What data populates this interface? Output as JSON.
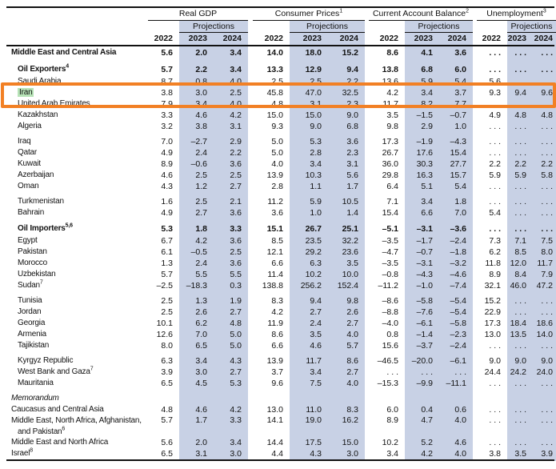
{
  "colors": {
    "projection_band": "#c8d1e5",
    "highlight_box": "#f28024",
    "search_highlight": "#b7e3b7",
    "rule_line": "#111111"
  },
  "table": {
    "col_groups": [
      {
        "label": "Real GDP",
        "sup": ""
      },
      {
        "label": "Consumer Prices",
        "sup": "1"
      },
      {
        "label": "Current Account Balance",
        "sup": "2"
      },
      {
        "label": "Unemployment",
        "sup": "3"
      }
    ],
    "projections_label": "Projections",
    "years": [
      "2022",
      "2023",
      "2024"
    ],
    "rows": [
      {
        "label": "Middle East and Central Asia",
        "sup": "",
        "bold": true,
        "indent": 0,
        "values": [
          "5.6",
          "2.0",
          "3.4",
          "14.0",
          "18.0",
          "15.2",
          "8.6",
          "4.1",
          "3.6",
          ". . .",
          ". . .",
          ". . ."
        ]
      },
      {
        "label": "Oil Exporters",
        "sup": "4",
        "bold": true,
        "indent": 1,
        "gap_before": true,
        "values": [
          "5.7",
          "2.2",
          "3.4",
          "13.3",
          "12.9",
          "9.4",
          "13.8",
          "6.8",
          "6.0",
          ". . .",
          ". . .",
          ". . ."
        ]
      },
      {
        "label": "Saudi Arabia",
        "indent": 1,
        "values": [
          "8.7",
          "0.8",
          "4.0",
          "2.5",
          "2.5",
          "2.2",
          "13.6",
          "5.9",
          "5.4",
          "5.6",
          "",
          ""
        ]
      },
      {
        "label": "Iran",
        "indent": 1,
        "highlight": true,
        "values": [
          "3.8",
          "3.0",
          "2.5",
          "45.8",
          "47.0",
          "32.5",
          "4.2",
          "3.4",
          "3.7",
          "9.3",
          "9.4",
          "9.6"
        ]
      },
      {
        "label": "United Arab Emirates",
        "indent": 1,
        "values": [
          "7.9",
          "3.4",
          "4.0",
          "4.8",
          "3.1",
          "2.3",
          "11.7",
          "8.2",
          "7.7",
          ". . .",
          ". . .",
          ". . ."
        ]
      },
      {
        "label": "Kazakhstan",
        "indent": 1,
        "values": [
          "3.3",
          "4.6",
          "4.2",
          "15.0",
          "15.0",
          "9.0",
          "3.5",
          "–1.5",
          "–0.7",
          "4.9",
          "4.8",
          "4.8"
        ]
      },
      {
        "label": "Algeria",
        "indent": 1,
        "values": [
          "3.2",
          "3.8",
          "3.1",
          "9.3",
          "9.0",
          "6.8",
          "9.8",
          "2.9",
          "1.0",
          ". . .",
          ". . .",
          ". . ."
        ]
      },
      {
        "label": "Iraq",
        "indent": 1,
        "gap_before": true,
        "values": [
          "7.0",
          "–2.7",
          "2.9",
          "5.0",
          "5.3",
          "3.6",
          "17.3",
          "–1.9",
          "–4.3",
          ". . .",
          ". . .",
          ". . ."
        ]
      },
      {
        "label": "Qatar",
        "indent": 1,
        "values": [
          "4.9",
          "2.4",
          "2.2",
          "5.0",
          "2.8",
          "2.3",
          "26.7",
          "17.6",
          "15.4",
          ". . .",
          ". . .",
          ". . ."
        ]
      },
      {
        "label": "Kuwait",
        "indent": 1,
        "values": [
          "8.9",
          "–0.6",
          "3.6",
          "4.0",
          "3.4",
          "3.1",
          "36.0",
          "30.3",
          "27.7",
          "2.2",
          "2.2",
          "2.2"
        ]
      },
      {
        "label": "Azerbaijan",
        "indent": 1,
        "values": [
          "4.6",
          "2.5",
          "2.5",
          "13.9",
          "10.3",
          "5.6",
          "29.8",
          "16.3",
          "15.7",
          "5.9",
          "5.9",
          "5.8"
        ]
      },
      {
        "label": "Oman",
        "indent": 1,
        "values": [
          "4.3",
          "1.2",
          "2.7",
          "2.8",
          "1.1",
          "1.7",
          "6.4",
          "5.1",
          "5.4",
          ". . .",
          ". . .",
          ". . ."
        ]
      },
      {
        "label": "Turkmenistan",
        "indent": 1,
        "gap_before": true,
        "values": [
          "1.6",
          "2.5",
          "2.1",
          "11.2",
          "5.9",
          "10.5",
          "7.1",
          "3.4",
          "1.8",
          ". . .",
          ". . .",
          ". . ."
        ]
      },
      {
        "label": "Bahrain",
        "indent": 1,
        "values": [
          "4.9",
          "2.7",
          "3.6",
          "3.6",
          "1.0",
          "1.4",
          "15.4",
          "6.6",
          "7.0",
          "5.4",
          ". . .",
          ". . ."
        ]
      },
      {
        "label": "Oil Importers",
        "sup": "5,6",
        "bold": true,
        "indent": 1,
        "gap_before": true,
        "values": [
          "5.3",
          "1.8",
          "3.3",
          "15.1",
          "26.7",
          "25.1",
          "–5.1",
          "–3.1",
          "–3.6",
          ". . .",
          ". . .",
          ". . ."
        ]
      },
      {
        "label": "Egypt",
        "indent": 1,
        "values": [
          "6.7",
          "4.2",
          "3.6",
          "8.5",
          "23.5",
          "32.2",
          "–3.5",
          "–1.7",
          "–2.4",
          "7.3",
          "7.1",
          "7.5"
        ]
      },
      {
        "label": "Pakistan",
        "indent": 1,
        "values": [
          "6.1",
          "–0.5",
          "2.5",
          "12.1",
          "29.2",
          "23.6",
          "–4.7",
          "–0.7",
          "–1.8",
          "6.2",
          "8.5",
          "8.0"
        ]
      },
      {
        "label": "Morocco",
        "indent": 1,
        "values": [
          "1.3",
          "2.4",
          "3.6",
          "6.6",
          "6.3",
          "3.5",
          "–3.5",
          "–3.1",
          "–3.2",
          "11.8",
          "12.0",
          "11.7"
        ]
      },
      {
        "label": "Uzbekistan",
        "indent": 1,
        "values": [
          "5.7",
          "5.5",
          "5.5",
          "11.4",
          "10.2",
          "10.0",
          "–0.8",
          "–4.3",
          "–4.6",
          "8.9",
          "8.4",
          "7.9"
        ]
      },
      {
        "label": "Sudan",
        "sup": "7",
        "indent": 1,
        "values": [
          "–2.5",
          "–18.3",
          "0.3",
          "138.8",
          "256.2",
          "152.4",
          "–11.2",
          "–1.0",
          "–7.4",
          "32.1",
          "46.0",
          "47.2"
        ]
      },
      {
        "label": "Tunisia",
        "indent": 1,
        "gap_before": true,
        "values": [
          "2.5",
          "1.3",
          "1.9",
          "8.3",
          "9.4",
          "9.8",
          "–8.6",
          "–5.8",
          "–5.4",
          "15.2",
          ". . .",
          ". . ."
        ]
      },
      {
        "label": "Jordan",
        "indent": 1,
        "values": [
          "2.5",
          "2.6",
          "2.7",
          "4.2",
          "2.7",
          "2.6",
          "–8.8",
          "–7.6",
          "–5.4",
          "22.9",
          ". . .",
          ". . ."
        ]
      },
      {
        "label": "Georgia",
        "indent": 1,
        "values": [
          "10.1",
          "6.2",
          "4.8",
          "11.9",
          "2.4",
          "2.7",
          "–4.0",
          "–6.1",
          "–5.8",
          "17.3",
          "18.4",
          "18.6"
        ]
      },
      {
        "label": "Armenia",
        "indent": 1,
        "values": [
          "12.6",
          "7.0",
          "5.0",
          "8.6",
          "3.5",
          "4.0",
          "0.8",
          "–1.4",
          "–2.3",
          "13.0",
          "13.5",
          "14.0"
        ]
      },
      {
        "label": "Tajikistan",
        "indent": 1,
        "values": [
          "8.0",
          "6.5",
          "5.0",
          "6.6",
          "4.6",
          "5.7",
          "15.6",
          "–3.7",
          "–2.4",
          ". . .",
          ". . .",
          ". . ."
        ]
      },
      {
        "label": "Kyrgyz Republic",
        "indent": 1,
        "gap_before": true,
        "values": [
          "6.3",
          "3.4",
          "4.3",
          "13.9",
          "11.7",
          "8.6",
          "–46.5",
          "–20.0",
          "–6.1",
          "9.0",
          "9.0",
          "9.0"
        ]
      },
      {
        "label": "West Bank and Gaza",
        "sup": "7",
        "indent": 1,
        "values": [
          "3.9",
          "3.0",
          "2.7",
          "3.7",
          "3.4",
          "2.7",
          ". . .",
          ". . .",
          ". . .",
          "24.4",
          "24.2",
          "24.0"
        ]
      },
      {
        "label": "Mauritania",
        "indent": 1,
        "values": [
          "6.5",
          "4.5",
          "5.3",
          "9.6",
          "7.5",
          "4.0",
          "–15.3",
          "–9.9",
          "–11.1",
          ". . .",
          ". . .",
          ". . ."
        ]
      },
      {
        "label": "Memorandum",
        "italic": true,
        "indent": 0,
        "gap_before": true,
        "values": [
          "",
          "",
          "",
          "",
          "",
          "",
          "",
          "",
          "",
          "",
          "",
          ""
        ]
      },
      {
        "label": "Caucasus and Central Asia",
        "indent": 0,
        "values": [
          "4.8",
          "4.6",
          "4.2",
          "13.0",
          "11.0",
          "8.3",
          "6.0",
          "0.4",
          "0.6",
          ". . .",
          ". . .",
          ". . ."
        ]
      },
      {
        "label": "Middle East, North Africa, Afghanistan,",
        "label2": "and Pakistan",
        "sup2": "6",
        "indent": 0,
        "values": [
          "5.7",
          "1.7",
          "3.3",
          "14.1",
          "19.0",
          "16.2",
          "8.9",
          "4.7",
          "4.0",
          ". . .",
          ". . .",
          ". . ."
        ]
      },
      {
        "label": "Middle East and North Africa",
        "indent": 0,
        "values": [
          "5.6",
          "2.0",
          "3.4",
          "14.4",
          "17.5",
          "15.0",
          "10.2",
          "5.2",
          "4.6",
          ". . .",
          ". . .",
          ". . ."
        ]
      },
      {
        "label": "Israel",
        "sup": "8",
        "indent": 0,
        "values": [
          "6.5",
          "3.1",
          "3.0",
          "4.4",
          "4.3",
          "3.0",
          "3.4",
          "4.2",
          "4.0",
          "3.8",
          "3.5",
          "3.9"
        ]
      }
    ],
    "annotations": {
      "highlighted_row": "Iran",
      "highlight_style": "orange box around full row, green fill behind row label"
    }
  }
}
